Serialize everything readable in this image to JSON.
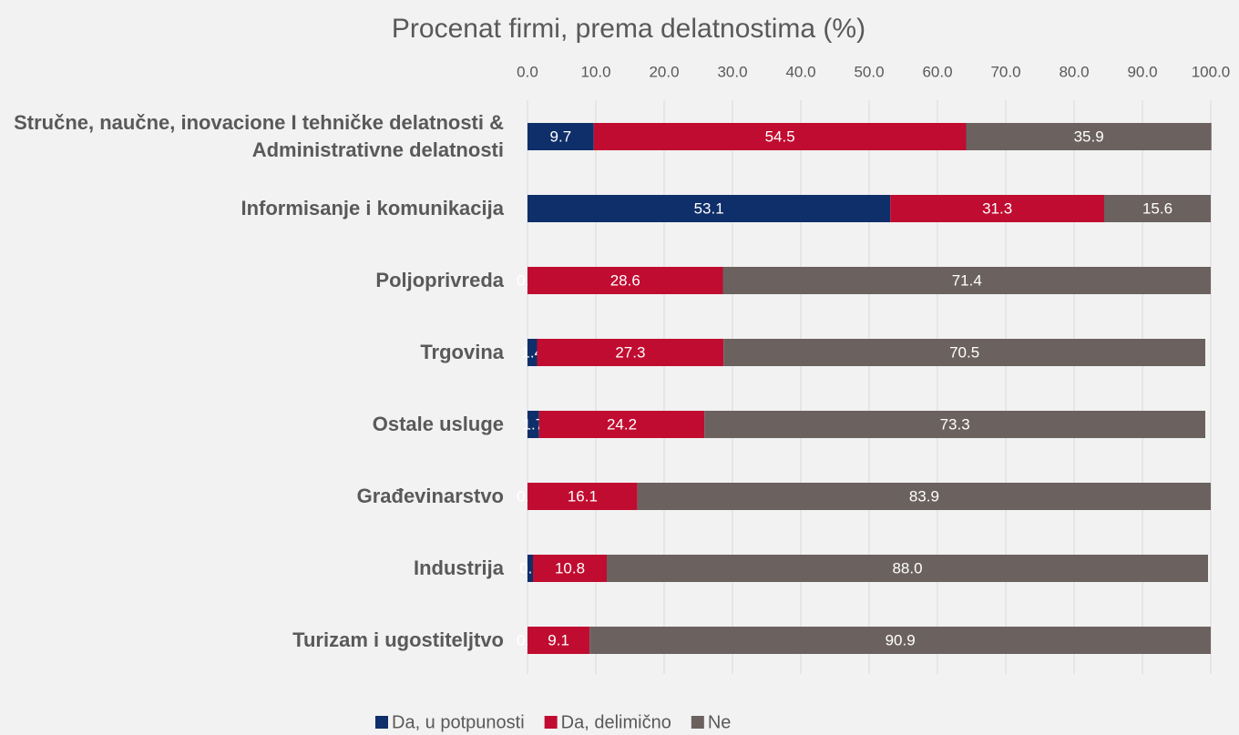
{
  "chart_data": {
    "type": "stacked-barh",
    "title": "Procenat firmi, prema delatnostima (%)",
    "categories": [
      "Stručne, naučne, inovacione I tehničke delatnosti & Administrativne delatnosti",
      "Informisanje i komunikacija",
      "Poljoprivreda",
      "Trgovina",
      "Ostale usluge",
      "Građevinarstvo",
      "Industrija",
      "Turizam i ugostiteljtvo"
    ],
    "series": [
      {
        "name": "Da, u potpunosti",
        "color": "#0f2f6a",
        "values": [
          9.7,
          53.1,
          0,
          1.4,
          1.7,
          0,
          0.8,
          0
        ],
        "value_labels": [
          "9.7",
          "53.1",
          "0.0",
          "1.4",
          "1.7",
          "0.0",
          "0.8",
          "0.0"
        ]
      },
      {
        "name": "Da, delimično",
        "color": "#c00c30",
        "values": [
          54.5,
          31.3,
          28.6,
          27.3,
          24.2,
          16.1,
          10.8,
          9.1
        ],
        "value_labels": [
          "54.5",
          "31.3",
          "28.6",
          "27.3",
          "24.2",
          "16.1",
          "10.8",
          "9.1"
        ]
      },
      {
        "name": "Ne",
        "color": "#6b6260",
        "values": [
          35.9,
          15.6,
          71.4,
          70.5,
          73.3,
          83.9,
          88,
          90.9
        ],
        "value_labels": [
          "35.9",
          "15.6",
          "71.4",
          "70.5",
          "73.3",
          "83.9",
          "88.0",
          "90.9"
        ]
      }
    ],
    "xlim": [
      0,
      100
    ],
    "xticks": [
      {
        "value": 0,
        "label": "0.0"
      },
      {
        "value": 10,
        "label": "10.0"
      },
      {
        "value": 20,
        "label": "20.0"
      },
      {
        "value": 30,
        "label": "30.0"
      },
      {
        "value": 40,
        "label": "40.0"
      },
      {
        "value": 50,
        "label": "50.0"
      },
      {
        "value": 60,
        "label": "60.0"
      },
      {
        "value": 70,
        "label": "70.0"
      },
      {
        "value": 80,
        "label": "80.0"
      },
      {
        "value": 90,
        "label": "90.0"
      },
      {
        "value": 100,
        "label": "100.0"
      }
    ],
    "grid": true,
    "legend": "bottom"
  }
}
